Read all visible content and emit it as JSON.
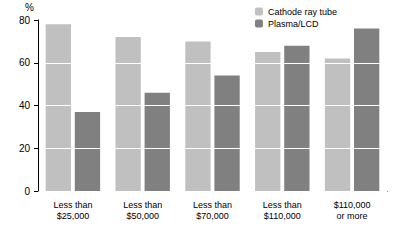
{
  "chart_data": {
    "type": "bar",
    "y_label": "%",
    "categories": [
      "Less than\n$25,000",
      "Less than\n$50,000",
      "Less than\n$70,000",
      "Less than\n$110,000",
      "$110,000\nor more"
    ],
    "series": [
      {
        "name": "Cathode ray tube",
        "color": "#c0c0c0",
        "values": [
          78,
          72,
          70,
          65,
          62
        ]
      },
      {
        "name": "Plasma/LCD",
        "color": "#808080",
        "values": [
          37,
          46,
          54,
          68,
          76
        ]
      }
    ],
    "ylim": [
      0,
      80
    ],
    "yticks": [
      0,
      20,
      40,
      60,
      80
    ],
    "grid": true,
    "legend": "upper right"
  }
}
